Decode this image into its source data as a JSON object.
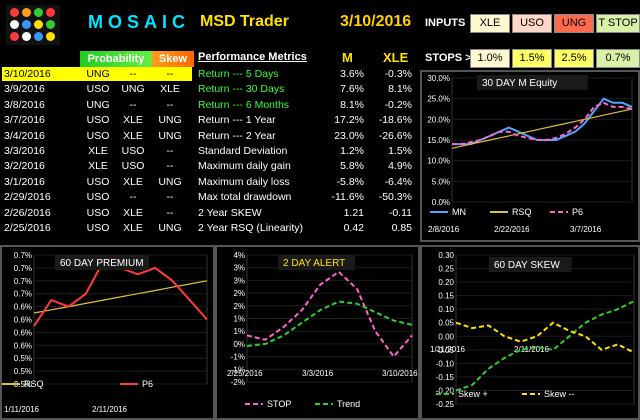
{
  "header": {
    "brand": "MOSAIC",
    "product": "MSD Trader",
    "date": "3/10/2016",
    "logo_dots": [
      "#ff3b3b",
      "#ff9f1a",
      "#33cc33",
      "#ff3b3b",
      "#ffffff",
      "#3399ff",
      "#ffe000",
      "#33cc33",
      "#ff3b3b",
      "#ffffff",
      "#3399ff",
      "#ffe000"
    ]
  },
  "inputs": {
    "label": "INPUTS",
    "items": [
      {
        "text": "XLE",
        "color": "#fff8d0"
      },
      {
        "text": "USO",
        "color": "#ffd8c8"
      },
      {
        "text": "UNG",
        "color": "#ff6a4d"
      },
      {
        "text": "T STOP",
        "color": "#d8f0a8"
      }
    ]
  },
  "stops": {
    "label": "STOPS >",
    "items": [
      {
        "text": "1.0%",
        "color": "#fff8d0"
      },
      {
        "text": "1.5%",
        "color": "#ffff66"
      },
      {
        "text": "2.5%",
        "color": "#ffff66"
      },
      {
        "text": "0.7%",
        "color": "#d8f0a8"
      }
    ]
  },
  "table_headers": {
    "prob": "Probability",
    "skew": "Skew",
    "perf": "Performance Metrics",
    "m": "M",
    "xle": "XLE"
  },
  "rows": [
    {
      "date": "3/10/2016",
      "a": "UNG",
      "b": "--",
      "c": "--"
    },
    {
      "date": "3/9/2016",
      "a": "USO",
      "b": "UNG",
      "c": "XLE"
    },
    {
      "date": "3/8/2016",
      "a": "UNG",
      "b": "--",
      "c": "--"
    },
    {
      "date": "3/7/2016",
      "a": "USO",
      "b": "XLE",
      "c": "UNG"
    },
    {
      "date": "3/4/2016",
      "a": "USO",
      "b": "XLE",
      "c": "UNG"
    },
    {
      "date": "3/3/2016",
      "a": "XLE",
      "b": "USO",
      "c": "--"
    },
    {
      "date": "3/2/2016",
      "a": "XLE",
      "b": "USO",
      "c": "--"
    },
    {
      "date": "3/1/2016",
      "a": "USO",
      "b": "XLE",
      "c": "UNG"
    },
    {
      "date": "2/29/2016",
      "a": "USO",
      "b": "--",
      "c": "--"
    },
    {
      "date": "2/26/2016",
      "a": "USO",
      "b": "XLE",
      "c": "--"
    },
    {
      "date": "2/25/2016",
      "a": "USO",
      "b": "XLE",
      "c": "UNG"
    }
  ],
  "metrics": [
    {
      "name": "Return --- 5 Days",
      "m": "3.6%",
      "xle": "-0.3%",
      "color": "#33ff33"
    },
    {
      "name": "Return --- 30 Days",
      "m": "7.6%",
      "xle": "8.1%",
      "color": "#33ff33"
    },
    {
      "name": "Return --- 6 Months",
      "m": "8.1%",
      "xle": "-0.2%",
      "color": "#33ff33"
    },
    {
      "name": "Return --- 1 Year",
      "m": "17.2%",
      "xle": "-18.6%",
      "color": "#ffffff"
    },
    {
      "name": "Return --- 2 Year",
      "m": "23.0%",
      "xle": "-26.6%",
      "color": "#ffffff"
    },
    {
      "name": "Standard Deviation",
      "m": "1.2%",
      "xle": "1.5%",
      "color": "#ffffff"
    },
    {
      "name": "Maximum daily gain",
      "m": "5.8%",
      "xle": "4.9%",
      "color": "#ffffff"
    },
    {
      "name": "Maximum daily loss",
      "m": "-5.8%",
      "xle": "-6.4%",
      "color": "#ffffff"
    },
    {
      "name": "Max total drawdown",
      "m": "-11.6%",
      "xle": "-50.3%",
      "color": "#ffffff"
    },
    {
      "name": "2 Year SKEW",
      "m": "1.21",
      "xle": "-0.11",
      "color": "#ffffff"
    },
    {
      "name": "2 Year RSQ  (Linearity)",
      "m": "0.42",
      "xle": "0.85",
      "color": "#ffffff"
    }
  ],
  "chart_data": [
    {
      "type": "line",
      "title": "30 DAY  M   Equity",
      "yticks": [
        "30.0%",
        "25.0%",
        "20.0%",
        "15.0%",
        "10.0%",
        "5.0%",
        "0.0%"
      ],
      "ylim": [
        0,
        30
      ],
      "xticks": [
        "2/8/2016",
        "2/22/2016",
        "3/7/2016"
      ],
      "series": [
        {
          "name": "MN",
          "color": "#4da6ff",
          "values": [
            14,
            14,
            14,
            15,
            16,
            17,
            18,
            17,
            16,
            15,
            15,
            15,
            16,
            17,
            19,
            22,
            25,
            24,
            24,
            23
          ]
        },
        {
          "name": "RSQ",
          "color": "#e0c040",
          "values": [
            13,
            13.5,
            14,
            14.5,
            15,
            15.5,
            16,
            16.5,
            17,
            17.5,
            18,
            18.5,
            19,
            19.5,
            20,
            20.5,
            21,
            21.5,
            22,
            22.5
          ]
        },
        {
          "name": "P6",
          "color": "#ff66cc",
          "values": [
            14,
            14,
            14.5,
            15,
            16,
            17,
            17,
            16,
            15.5,
            15,
            15,
            15.5,
            16.5,
            18,
            20,
            23,
            24,
            23,
            23,
            22.5
          ]
        }
      ]
    },
    {
      "type": "line",
      "title": "60  DAY PREMIUM",
      "yticks": [
        "0.7%",
        "0.7%",
        "0.7%",
        "0.7%",
        "0.6%",
        "0.6%",
        "0.6%",
        "0.6%",
        "0.5%",
        "0.5%",
        "0.5%"
      ],
      "ylim": [
        0.5,
        0.7
      ],
      "xticks": [
        "1/11/2016",
        "2/11/2016"
      ],
      "series": [
        {
          "name": "RSQ",
          "color": "#e0c040",
          "values": [
            0.61,
            0.615,
            0.62,
            0.625,
            0.63,
            0.635,
            0.64,
            0.645,
            0.65,
            0.655,
            0.66
          ]
        },
        {
          "name": "P6",
          "color": "#ff3b3b",
          "values": [
            0.59,
            0.63,
            0.62,
            0.64,
            0.69,
            0.68,
            0.67,
            0.68,
            0.66,
            0.63,
            0.6
          ]
        }
      ]
    },
    {
      "type": "line",
      "title": "2 DAY  ALERT",
      "yticks": [
        "4%",
        "3%",
        "3%",
        "2%",
        "2%",
        "1%",
        "1%",
        "0%",
        "-1%",
        "-1%",
        "-2%"
      ],
      "ylim": [
        -2,
        4
      ],
      "xticks": [
        "2/25/2016",
        "3/3/2016",
        "3/10/2016"
      ],
      "series": [
        {
          "name": "STOP",
          "color": "#ff66cc",
          "values": [
            0.2,
            0.0,
            0.6,
            1.4,
            2.6,
            3.2,
            2.4,
            0.4,
            -0.8,
            0.2
          ]
        },
        {
          "name": "Trend",
          "color": "#33cc33",
          "values": [
            -0.3,
            -0.2,
            0.2,
            0.8,
            1.4,
            1.8,
            1.7,
            1.3,
            0.9,
            0.7
          ]
        }
      ]
    },
    {
      "type": "line",
      "title": "60  DAY  SKEW",
      "yticks": [
        "0.30",
        "0.25",
        "0.20",
        "0.15",
        "0.10",
        "0.05",
        "0.00",
        "-0.05",
        "-0.10",
        "-0.15",
        "-0.20",
        "-0.25"
      ],
      "ylim": [
        -0.25,
        0.3
      ],
      "xticks": [
        "1/11/2016",
        "2/11/2016"
      ],
      "series": [
        {
          "name": "Skew +",
          "color": "#33cc33",
          "values": [
            -0.2,
            -0.18,
            -0.12,
            -0.08,
            -0.05,
            -0.04,
            -0.05,
            0.0,
            0.05,
            0.08,
            0.1,
            0.13
          ]
        },
        {
          "name": "Skew --",
          "color": "#ffe000",
          "values": [
            0.05,
            0.03,
            0.04,
            0.0,
            -0.02,
            0.0,
            0.05,
            0.02,
            0.0,
            -0.05,
            -0.03,
            -0.06
          ]
        }
      ]
    }
  ]
}
